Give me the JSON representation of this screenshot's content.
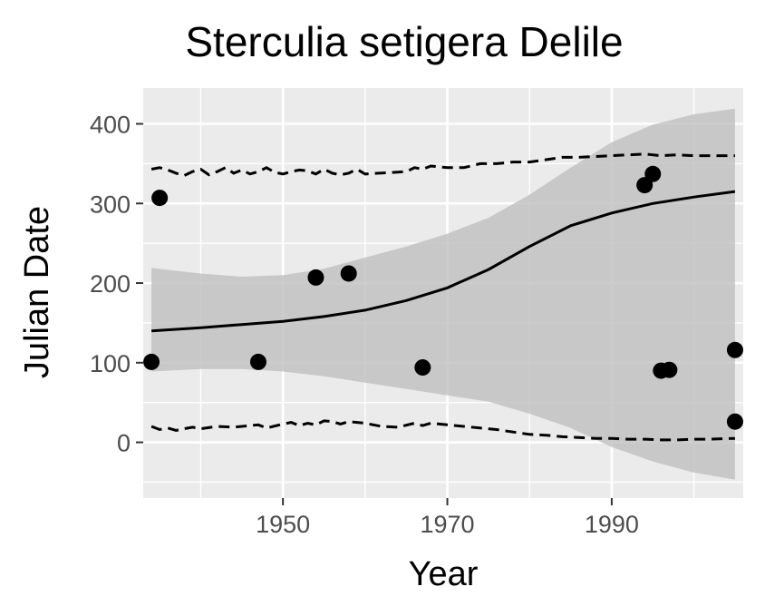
{
  "chart_data": {
    "type": "scatter",
    "title": "Sterculia setigera Delile",
    "xlabel": "Year",
    "ylabel": "Julian Date",
    "xlim": [
      1933,
      2006
    ],
    "ylim": [
      -70,
      445
    ],
    "x_ticks": [
      1950,
      1970,
      1990
    ],
    "y_ticks": [
      0,
      100,
      200,
      300,
      400
    ],
    "grid": true,
    "legend": "none",
    "colors": {
      "panel": "#ebebeb",
      "grid": "#ffffff",
      "points": "#000000",
      "ribbon": "#bfbfbf",
      "fit_line": "#000000",
      "tick_label": "#4d4d4d",
      "tick_mark": "#333333"
    },
    "points": [
      {
        "x": 1934,
        "y": 101
      },
      {
        "x": 1935,
        "y": 307
      },
      {
        "x": 1947,
        "y": 101
      },
      {
        "x": 1954,
        "y": 207
      },
      {
        "x": 1958,
        "y": 212
      },
      {
        "x": 1967,
        "y": 94
      },
      {
        "x": 1994,
        "y": 323
      },
      {
        "x": 1995,
        "y": 337
      },
      {
        "x": 1996,
        "y": 90
      },
      {
        "x": 1997,
        "y": 91
      },
      {
        "x": 2005,
        "y": 116
      },
      {
        "x": 2005,
        "y": 26
      }
    ],
    "fit_line": {
      "x": [
        1934,
        1940,
        1945,
        1950,
        1955,
        1960,
        1965,
        1970,
        1975,
        1980,
        1985,
        1990,
        1995,
        2000,
        2005
      ],
      "y": [
        140,
        144,
        148,
        152,
        158,
        166,
        178,
        194,
        217,
        246,
        272,
        288,
        300,
        308,
        315
      ]
    },
    "confidence_band": {
      "x": [
        1934,
        1940,
        1945,
        1950,
        1955,
        1960,
        1965,
        1970,
        1975,
        1980,
        1985,
        1990,
        1995,
        2000,
        2005
      ],
      "upper": [
        219,
        212,
        208,
        210,
        218,
        232,
        246,
        262,
        282,
        311,
        345,
        377,
        399,
        412,
        419
      ],
      "lower": [
        89,
        92,
        92,
        89,
        83,
        75,
        67,
        59,
        51,
        36,
        18,
        -6,
        -24,
        -38,
        -47
      ]
    },
    "dashed_upper": {
      "x": [
        1934,
        1935,
        1936,
        1937,
        1938,
        1939,
        1940,
        1941,
        1942,
        1943,
        1944,
        1945,
        1946,
        1947,
        1948,
        1949,
        1950,
        1951,
        1952,
        1953,
        1954,
        1955,
        1956,
        1957,
        1958,
        1959,
        1960,
        1965,
        1966,
        1967,
        1968,
        1970,
        1972,
        1974,
        1976,
        1978,
        1980,
        1982,
        1984,
        1986,
        1988,
        1990,
        1992,
        1994,
        1996,
        1998,
        2000,
        2002,
        2005
      ],
      "y": [
        343,
        345,
        342,
        338,
        335,
        340,
        343,
        336,
        340,
        345,
        338,
        342,
        337,
        340,
        345,
        339,
        337,
        340,
        342,
        341,
        337,
        343,
        338,
        336,
        338,
        343,
        337,
        340,
        345,
        343,
        347,
        345,
        345,
        350,
        350,
        352,
        352,
        355,
        358,
        358,
        359,
        360,
        361,
        362,
        360,
        361,
        360,
        360,
        360
      ]
    },
    "dashed_lower": {
      "x": [
        1934,
        1935,
        1936,
        1937,
        1938,
        1939,
        1940,
        1942,
        1944,
        1946,
        1947,
        1948,
        1950,
        1951,
        1952,
        1953,
        1954,
        1955,
        1956,
        1957,
        1958,
        1960,
        1962,
        1964,
        1966,
        1967,
        1968,
        1970,
        1972,
        1974,
        1976,
        1978,
        1980,
        1982,
        1984,
        1986,
        1988,
        1990,
        1992,
        1994,
        1996,
        1998,
        2000,
        2002,
        2005
      ],
      "y": [
        20,
        16,
        18,
        15,
        17,
        19,
        17,
        20,
        19,
        21,
        22,
        18,
        23,
        25,
        21,
        24,
        22,
        27,
        26,
        23,
        26,
        24,
        20,
        19,
        24,
        21,
        24,
        22,
        20,
        18,
        16,
        13,
        10,
        9,
        7,
        6,
        5,
        5,
        4,
        4,
        3,
        3,
        4,
        4,
        5
      ]
    }
  }
}
